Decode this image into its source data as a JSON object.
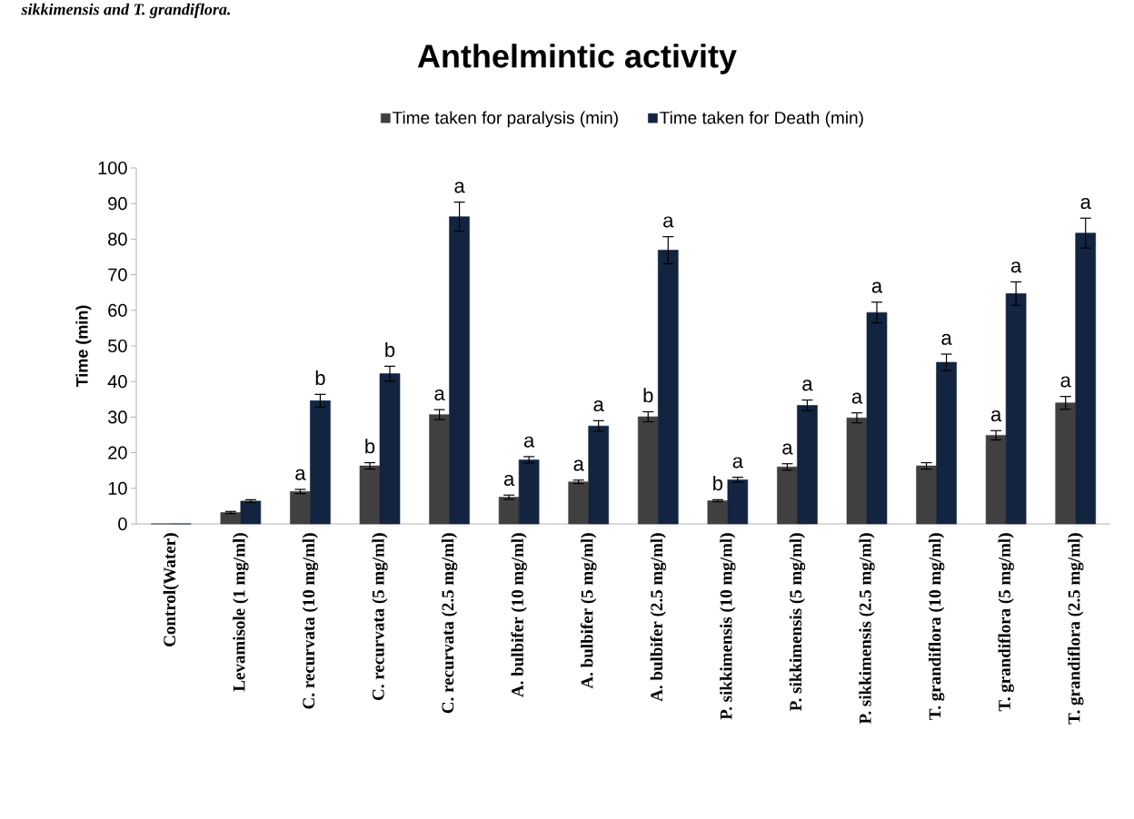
{
  "chart_data": {
    "type": "bar",
    "title": "Anthelmintic activity",
    "ylabel": "Time (min)",
    "legend": "top",
    "categories": [
      "Control(Water)",
      "Levamisole (1 mg/ml)",
      "C. recurvata (10 mg/ml)",
      "C. recurvata (5 mg/ml)",
      "C. recurvata (2.5 mg/ml)",
      "A. bulbifer (10 mg/ml)",
      "A. bulbifer (5 mg/ml)",
      "A. bulbifer (2.5 mg/ml)",
      "P. sikkimensis (10 mg/ml)",
      "P. sikkimensis (5 mg/ml)",
      "P. sikkimensis (2.5 mg/ml)",
      "T. grandiflora (10 mg/ml)",
      "T. grandiflora (5 mg/ml)",
      "T. grandiflora (2.5 mg/ml)"
    ],
    "series": [
      {
        "name": "Time taken for paralysis (min)",
        "color": "#404040",
        "values": [
          0,
          3.2,
          9.1,
          16.3,
          30.7,
          7.5,
          11.8,
          30.1,
          6.5,
          16.0,
          29.8,
          16.3,
          24.9,
          34.0
        ],
        "errors": [
          null,
          0.3,
          0.6,
          0.9,
          1.4,
          0.6,
          0.5,
          1.4,
          0.3,
          0.9,
          1.4,
          0.9,
          1.3,
          1.8
        ],
        "value_labels": [
          null,
          null,
          "a",
          "b",
          "a",
          "a",
          "a",
          "b",
          "b",
          "a",
          "a",
          null,
          "a",
          "a"
        ]
      },
      {
        "name": "Time taken for Death (min)",
        "color": "#12243f",
        "values": [
          0,
          6.4,
          34.6,
          42.2,
          86.3,
          18.0,
          27.5,
          76.9,
          12.4,
          33.3,
          59.4,
          45.4,
          64.7,
          81.7
        ],
        "errors": [
          null,
          0.4,
          1.8,
          2.1,
          4.1,
          0.9,
          1.5,
          3.8,
          0.7,
          1.5,
          2.9,
          2.3,
          3.3,
          4.2
        ],
        "value_labels": [
          null,
          null,
          "b",
          "b",
          "a",
          "a",
          "a",
          "a",
          "a",
          "a",
          "a",
          "a",
          "a",
          "a"
        ]
      }
    ],
    "ylim": [
      0,
      100
    ],
    "yticks": [
      0,
      10,
      20,
      30,
      40,
      50,
      60,
      70,
      80,
      90,
      100
    ],
    "annotations": [
      "sikkimensis and T. grandiflora."
    ]
  }
}
